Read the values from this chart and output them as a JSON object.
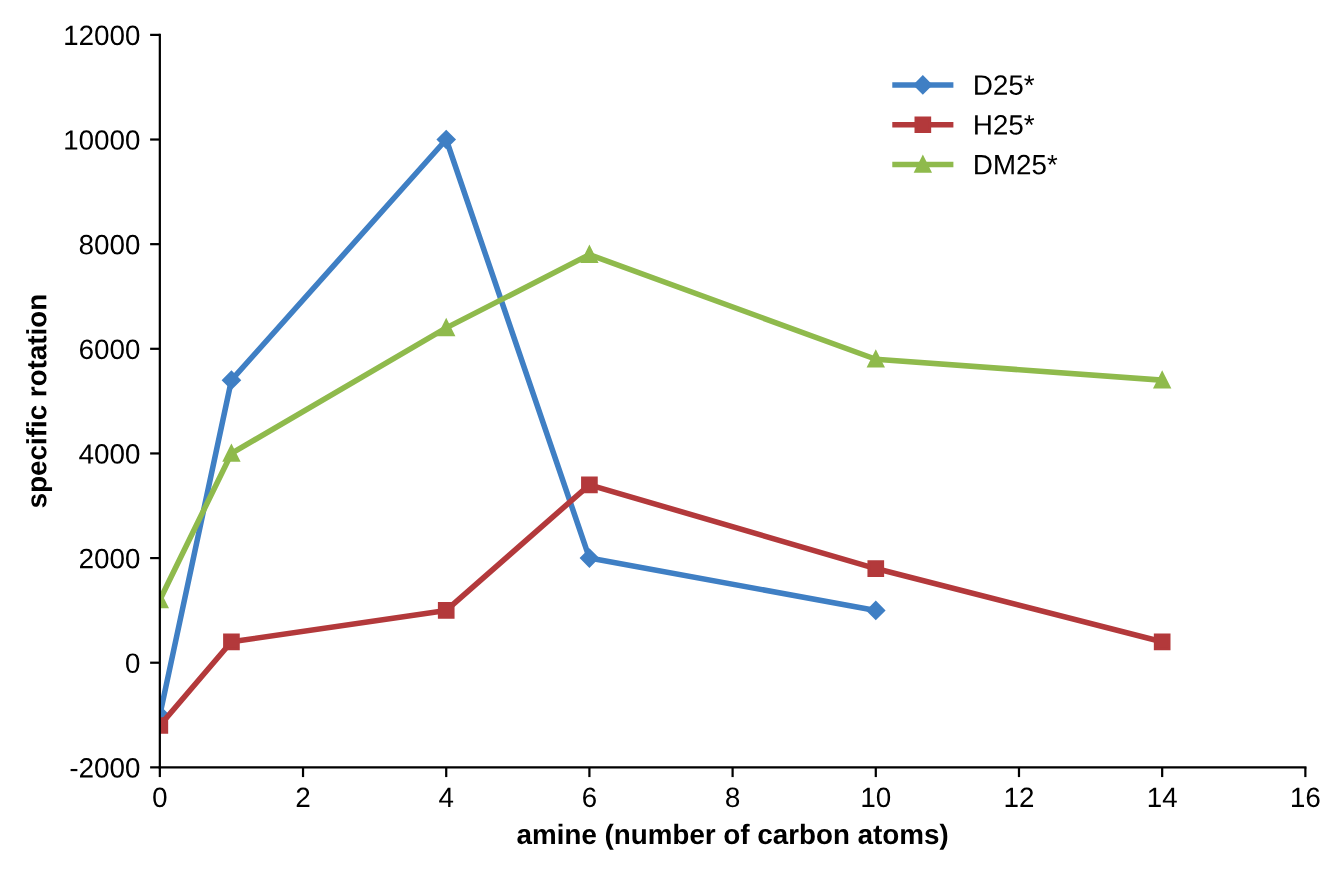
{
  "chart_data": {
    "type": "line",
    "xlabel": "amine (number of carbon atoms)",
    "ylabel": "specific rotation",
    "series": [
      {
        "name": "D25*",
        "color": "#3f7fc4",
        "marker": "diamond",
        "x": [
          0,
          1,
          4,
          6,
          10
        ],
        "values": [
          -1000,
          5400,
          10000,
          2000,
          1000
        ]
      },
      {
        "name": "H25*",
        "color": "#b3393b",
        "marker": "square",
        "x": [
          0,
          1,
          4,
          6,
          10,
          14
        ],
        "values": [
          -1200,
          400,
          1000,
          3400,
          1800,
          400
        ]
      },
      {
        "name": "DM25*",
        "color": "#8fba4c",
        "marker": "triangle",
        "x": [
          0,
          1,
          4,
          6,
          10,
          14
        ],
        "values": [
          1200,
          4000,
          6400,
          7800,
          5800,
          5400
        ]
      }
    ],
    "xlim": [
      0,
      16
    ],
    "xticks": [
      0,
      2,
      4,
      6,
      8,
      10,
      12,
      14,
      16
    ],
    "ylim": [
      -2000,
      12000
    ],
    "yticks": [
      -2000,
      0,
      2000,
      4000,
      6000,
      8000,
      10000,
      12000
    ],
    "grid": false,
    "legend": "top right",
    "line_style": "solid"
  }
}
